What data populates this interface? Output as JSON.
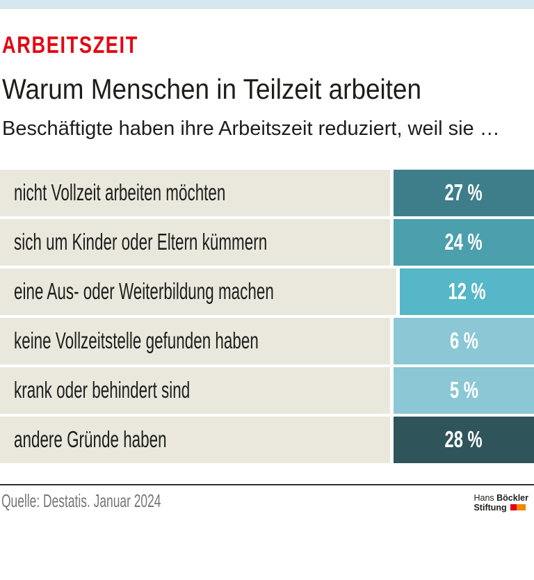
{
  "colors": {
    "top_bar_blue": "#d7e7ef",
    "kicker_red": "#e30613",
    "text_dark": "#1d1d1b",
    "label_cell_beige": "#eae8dd",
    "footer_rule": "#2e2e2e",
    "source_gray": "#757575",
    "logo_red": "#e2001a",
    "logo_orange": "#f18700"
  },
  "header": {
    "kicker": "ARBEITSZEIT",
    "title": "Warum Menschen in Teilzeit arbeiten",
    "subtitle": "Beschäftigte haben ihre Arbeitszeit reduziert, weil sie …"
  },
  "chart_data": {
    "type": "bar",
    "title": "Warum Menschen in Teilzeit arbeiten",
    "subtitle": "Beschäftigte haben ihre Arbeitszeit reduziert, weil sie …",
    "unit": "%",
    "categories": [
      "nicht Vollzeit arbeiten möchten",
      "sich um Kinder oder Eltern kümmern",
      "eine Aus- oder Weiterbildung machen",
      "keine Vollzeitstelle gefunden haben",
      "krank oder behindert sind",
      "andere Gründe haben"
    ],
    "values": [
      27,
      24,
      12,
      6,
      5,
      28
    ],
    "value_labels": [
      "27 %",
      "24 %",
      "12 %",
      "6 %",
      "5 %",
      "28 %"
    ],
    "bar_colors": [
      "#3d7e8a",
      "#4c9fad",
      "#55b7c8",
      "#8bc7d5",
      "#8bc7d5",
      "#2f555b"
    ],
    "layout": {
      "orientation": "horizontal",
      "uniform_value_boxes": true,
      "value_box_align": "right",
      "axes": "none",
      "grid": false,
      "legend": "none"
    }
  },
  "footer": {
    "source": "Quelle: Destatis. Januar 2024",
    "logo": {
      "name_regular": "Hans",
      "name_bold": "Böckler",
      "line2": "Stiftung"
    }
  }
}
